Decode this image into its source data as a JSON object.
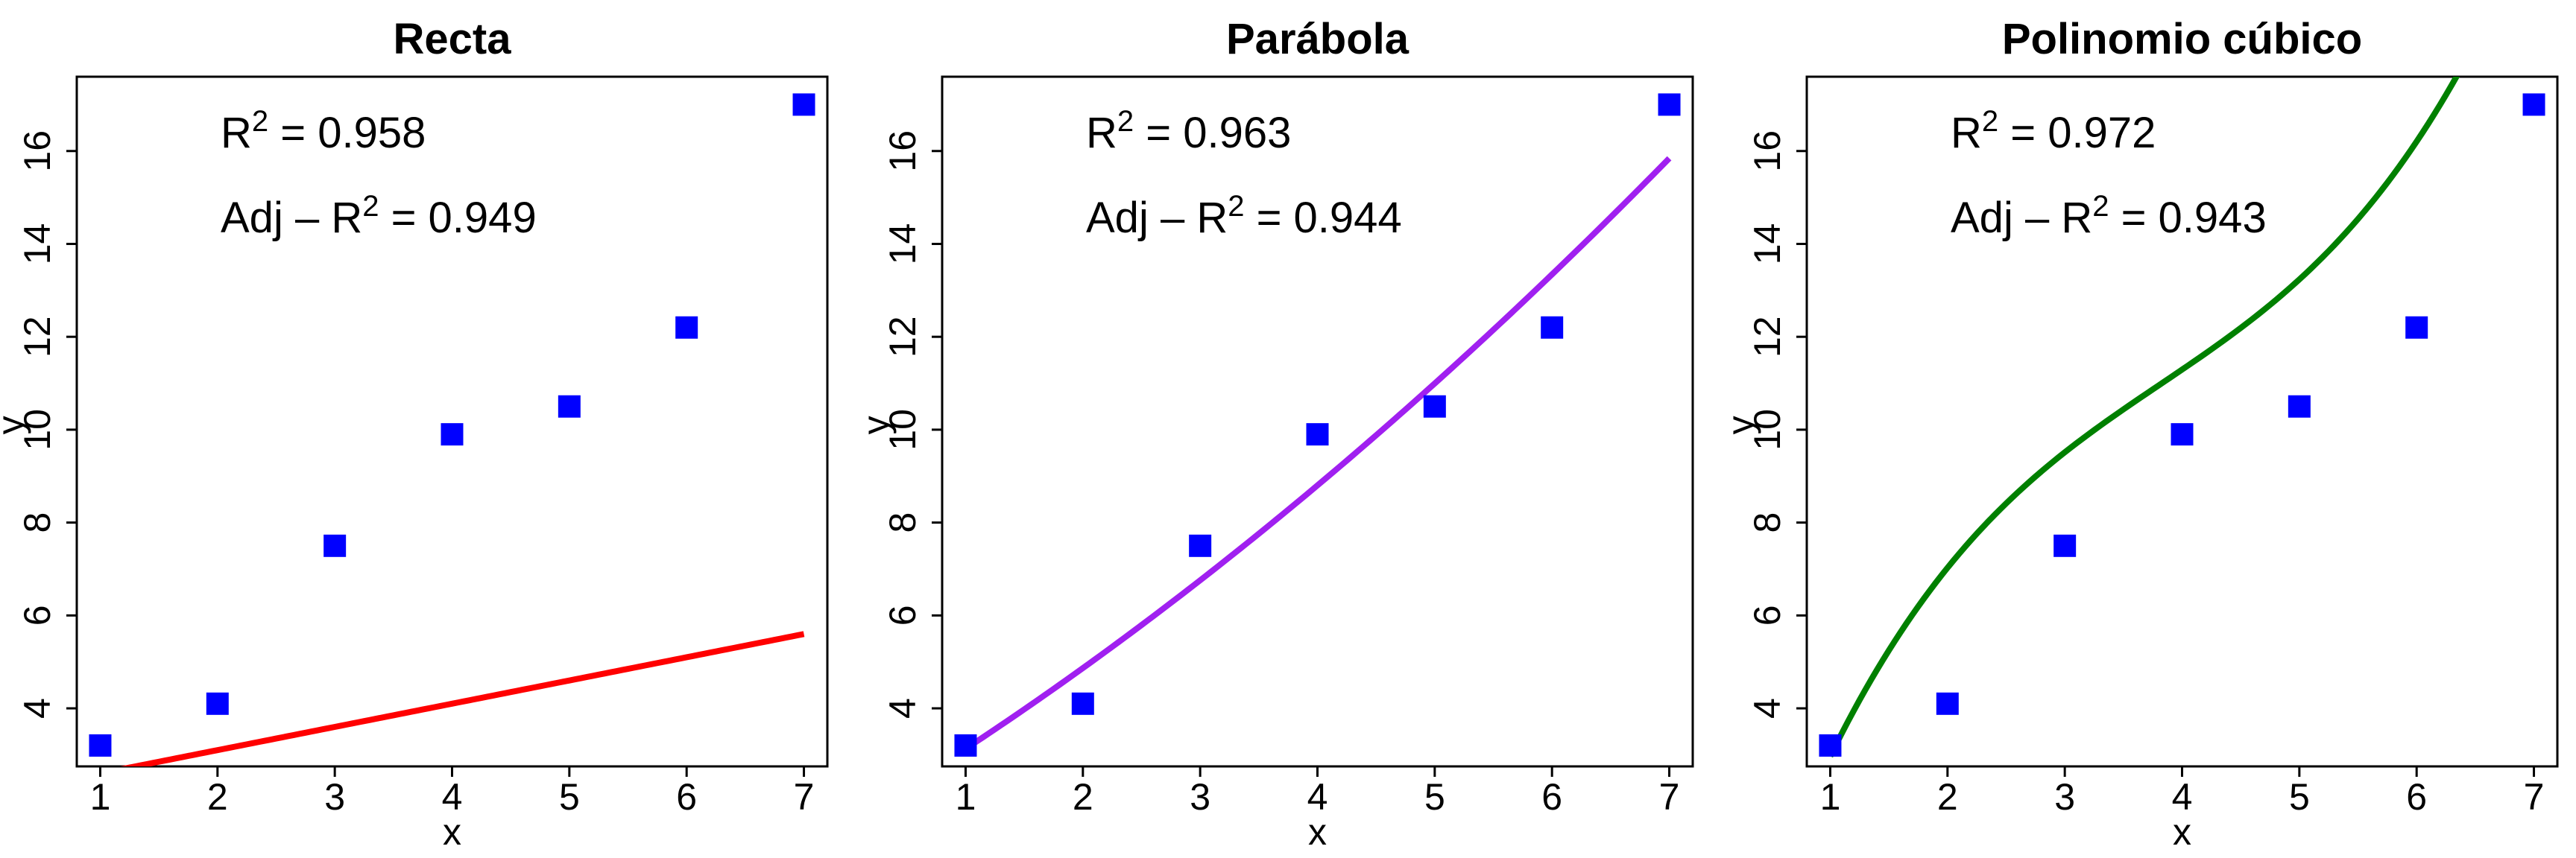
{
  "figure": {
    "panels_count": 3
  },
  "chart_data": [
    {
      "type": "scatter",
      "title": "Recta",
      "xlabel": "x",
      "ylabel": "y",
      "xlim": [
        0.8,
        7.2
      ],
      "ylim": [
        2.75,
        17.6
      ],
      "xticks": [
        "1",
        "2",
        "3",
        "4",
        "5",
        "6",
        "7"
      ],
      "yticks": [
        "4",
        "6",
        "8",
        "10",
        "12",
        "14",
        "16"
      ],
      "series": [
        {
          "marker": "square",
          "color": "#0000FF",
          "x": [
            1,
            2,
            3,
            4,
            5,
            6,
            7
          ],
          "y": [
            3.2,
            4.1,
            7.5,
            9.9,
            10.5,
            12.2,
            17.0
          ]
        }
      ],
      "fit": {
        "kind": "linear",
        "color": "#FF0000",
        "coefficients": [
          0.5,
          2.1
        ],
        "x_range": [
          1,
          7
        ]
      },
      "annotations": {
        "r2_label": "R",
        "r2_eq": " = 0.958",
        "adj_label": "Adj – R",
        "adj_eq": " = 0.949",
        "sup": "2"
      }
    },
    {
      "type": "scatter",
      "title": "Parábola",
      "xlabel": "x",
      "ylabel": "y",
      "xlim": [
        0.8,
        7.2
      ],
      "ylim": [
        2.75,
        17.6
      ],
      "xticks": [
        "1",
        "2",
        "3",
        "4",
        "5",
        "6",
        "7"
      ],
      "yticks": [
        "4",
        "6",
        "8",
        "10",
        "12",
        "14",
        "16"
      ],
      "series": [
        {
          "marker": "square",
          "color": "#0000FF",
          "x": [
            1,
            2,
            3,
            4,
            5,
            6,
            7
          ],
          "y": [
            3.2,
            4.1,
            7.5,
            9.9,
            10.5,
            12.2,
            17.0
          ]
        }
      ],
      "fit": {
        "kind": "quadratic",
        "color": "#A020F0",
        "coefficients": [
          1.5429,
          1.5095,
          0.0762
        ],
        "x_range": [
          1,
          7
        ]
      },
      "annotations": {
        "r2_label": "R",
        "r2_eq": " = 0.963",
        "adj_label": "Adj – R",
        "adj_eq": " = 0.944",
        "sup": "2"
      }
    },
    {
      "type": "scatter",
      "title": "Polinomio cúbico",
      "xlabel": "x",
      "ylabel": "y",
      "xlim": [
        0.8,
        7.2
      ],
      "ylim": [
        2.75,
        17.6
      ],
      "xticks": [
        "1",
        "2",
        "3",
        "4",
        "5",
        "6",
        "7"
      ],
      "yticks": [
        "4",
        "6",
        "8",
        "10",
        "12",
        "14",
        "16"
      ],
      "series": [
        {
          "marker": "square",
          "color": "#0000FF",
          "x": [
            1,
            2,
            3,
            4,
            5,
            6,
            7
          ],
          "y": [
            3.2,
            4.1,
            7.5,
            9.9,
            10.5,
            12.2,
            17.0
          ]
        }
      ],
      "fit": {
        "kind": "cubic",
        "color": "#008000",
        "coefficients": [
          -3.5286,
          8.0048,
          -1.6524,
          0.1444
        ],
        "x_range": [
          1,
          7
        ]
      },
      "annotations": {
        "r2_label": "R",
        "r2_eq": " = 0.972",
        "adj_label": "Adj – R",
        "adj_eq": " = 0.943",
        "sup": "2"
      }
    }
  ]
}
